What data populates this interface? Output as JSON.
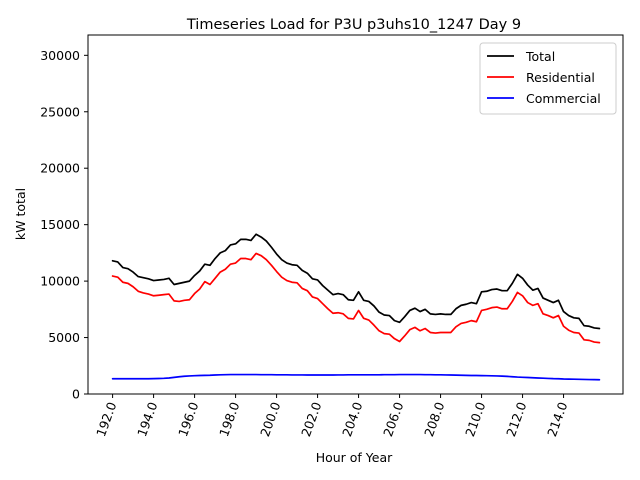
{
  "chart_data": {
    "type": "line",
    "title": "Timeseries Load for P3U p3uhs10_1247  Day 9",
    "xlabel": "Hour of Year",
    "ylabel": "kW total",
    "xlim": [
      190.8,
      216.9
    ],
    "ylim": [
      0,
      31800
    ],
    "grid": false,
    "legend_position": "top-right",
    "xticks": [
      192,
      194,
      196,
      198,
      200,
      202,
      204,
      206,
      208,
      210,
      212,
      214
    ],
    "xtick_labels": [
      "192.0",
      "194.0",
      "196.0",
      "198.0",
      "200.0",
      "202.0",
      "204.0",
      "206.0",
      "208.0",
      "210.0",
      "212.0",
      "214.0"
    ],
    "yticks": [
      0,
      5000,
      10000,
      15000,
      20000,
      25000,
      30000
    ],
    "ytick_labels": [
      "0",
      "5000",
      "10000",
      "15000",
      "20000",
      "25000",
      "30000"
    ],
    "x": [
      192.0,
      192.25,
      192.5,
      192.75,
      193.0,
      193.25,
      193.5,
      193.75,
      194.0,
      194.25,
      194.5,
      194.75,
      195.0,
      195.25,
      195.5,
      195.75,
      196.0,
      196.25,
      196.5,
      196.75,
      197.0,
      197.25,
      197.5,
      197.75,
      198.0,
      198.25,
      198.5,
      198.75,
      199.0,
      199.25,
      199.5,
      199.75,
      200.0,
      200.25,
      200.5,
      200.75,
      201.0,
      201.25,
      201.5,
      201.75,
      202.0,
      202.25,
      202.5,
      202.75,
      203.0,
      203.25,
      203.5,
      203.75,
      204.0,
      204.25,
      204.5,
      204.75,
      205.0,
      205.25,
      205.5,
      205.75,
      206.0,
      206.25,
      206.5,
      206.75,
      207.0,
      207.25,
      207.5,
      207.75,
      208.0,
      208.25,
      208.5,
      208.75,
      209.0,
      209.25,
      209.5,
      209.75,
      210.0,
      210.25,
      210.5,
      210.75,
      211.0,
      211.25,
      211.5,
      211.75,
      212.0,
      212.25,
      212.5,
      212.75,
      213.0,
      213.25,
      213.5,
      213.75,
      214.0,
      214.25,
      214.5,
      214.75,
      215.0,
      215.25,
      215.5,
      215.75
    ],
    "series": [
      {
        "name": "Total",
        "color": "#000000",
        "values": [
          11800,
          11700,
          11200,
          11100,
          10800,
          10400,
          10300,
          10200,
          10050,
          10100,
          10150,
          10250,
          9700,
          9800,
          9900,
          10000,
          10500,
          10900,
          11500,
          11400,
          12000,
          12500,
          12700,
          13200,
          13300,
          13700,
          13700,
          13600,
          14150,
          13900,
          13550,
          13000,
          12400,
          11900,
          11600,
          11450,
          11400,
          10950,
          10700,
          10200,
          10100,
          9600,
          9200,
          8800,
          8900,
          8800,
          8350,
          8300,
          9050,
          8300,
          8200,
          7800,
          7250,
          7000,
          6950,
          6500,
          6350,
          6850,
          7400,
          7600,
          7300,
          7500,
          7100,
          7050,
          7100,
          7050,
          7050,
          7550,
          7850,
          7950,
          8100,
          8000,
          9050,
          9100,
          9250,
          9300,
          9150,
          9150,
          9800,
          10600,
          10250,
          9650,
          9200,
          9350,
          8500,
          8300,
          8100,
          8300,
          7300,
          6950,
          6750,
          6700,
          6050,
          6000,
          5850,
          5800
        ]
      },
      {
        "name": "Residential",
        "color": "#ff0000",
        "values": [
          10450,
          10350,
          9900,
          9800,
          9500,
          9100,
          8950,
          8850,
          8700,
          8750,
          8800,
          8850,
          8250,
          8200,
          8300,
          8350,
          8900,
          9300,
          9950,
          9700,
          10250,
          10800,
          11050,
          11500,
          11600,
          12000,
          12000,
          11900,
          12450,
          12250,
          11900,
          11400,
          10850,
          10350,
          10050,
          9900,
          9850,
          9350,
          9150,
          8600,
          8450,
          8000,
          7550,
          7150,
          7200,
          7100,
          6700,
          6650,
          7400,
          6700,
          6550,
          6100,
          5600,
          5350,
          5300,
          4900,
          4650,
          5150,
          5700,
          5900,
          5600,
          5800,
          5450,
          5400,
          5450,
          5450,
          5450,
          5950,
          6250,
          6350,
          6500,
          6400,
          7400,
          7500,
          7650,
          7700,
          7550,
          7550,
          8200,
          9000,
          8700,
          8100,
          7850,
          8000,
          7100,
          6950,
          6750,
          6950,
          6000,
          5650,
          5450,
          5400,
          4800,
          4750,
          4600,
          4550
        ]
      },
      {
        "name": "Commercial",
        "color": "#0000ff",
        "values": [
          1350,
          1350,
          1350,
          1350,
          1350,
          1350,
          1350,
          1350,
          1360,
          1370,
          1390,
          1420,
          1470,
          1530,
          1570,
          1600,
          1620,
          1640,
          1650,
          1660,
          1680,
          1700,
          1710,
          1720,
          1720,
          1720,
          1720,
          1720,
          1720,
          1710,
          1710,
          1710,
          1700,
          1700,
          1700,
          1690,
          1690,
          1690,
          1680,
          1680,
          1680,
          1680,
          1680,
          1680,
          1690,
          1690,
          1700,
          1700,
          1700,
          1700,
          1700,
          1700,
          1700,
          1710,
          1710,
          1710,
          1720,
          1720,
          1720,
          1720,
          1720,
          1710,
          1710,
          1700,
          1700,
          1690,
          1680,
          1670,
          1660,
          1650,
          1640,
          1640,
          1630,
          1620,
          1610,
          1600,
          1580,
          1560,
          1530,
          1500,
          1480,
          1460,
          1440,
          1420,
          1400,
          1380,
          1360,
          1350,
          1330,
          1320,
          1310,
          1300,
          1290,
          1280,
          1270,
          1260
        ]
      }
    ]
  }
}
